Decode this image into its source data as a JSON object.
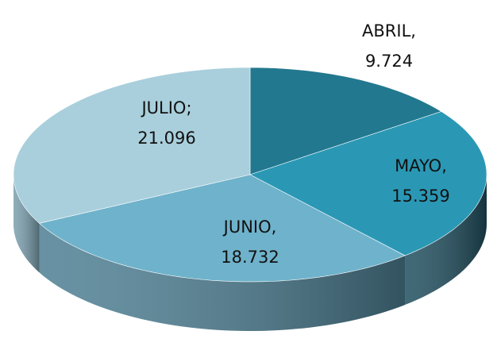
{
  "chart_data": {
    "type": "pie3d",
    "categories": [
      "ABRIL",
      "MAYO",
      "JUNIO",
      "JULIO"
    ],
    "separators": [
      ",",
      ",",
      ",",
      ";"
    ],
    "values": [
      9.724,
      15.359,
      18.732,
      21.096
    ],
    "colors": [
      "#22788f",
      "#2a98b5",
      "#6fb2cb",
      "#a9cfdc"
    ],
    "side_colors": [
      "#1a5a6b",
      "#1f4e5e",
      "#4d7f93",
      "#7a9fae"
    ]
  }
}
